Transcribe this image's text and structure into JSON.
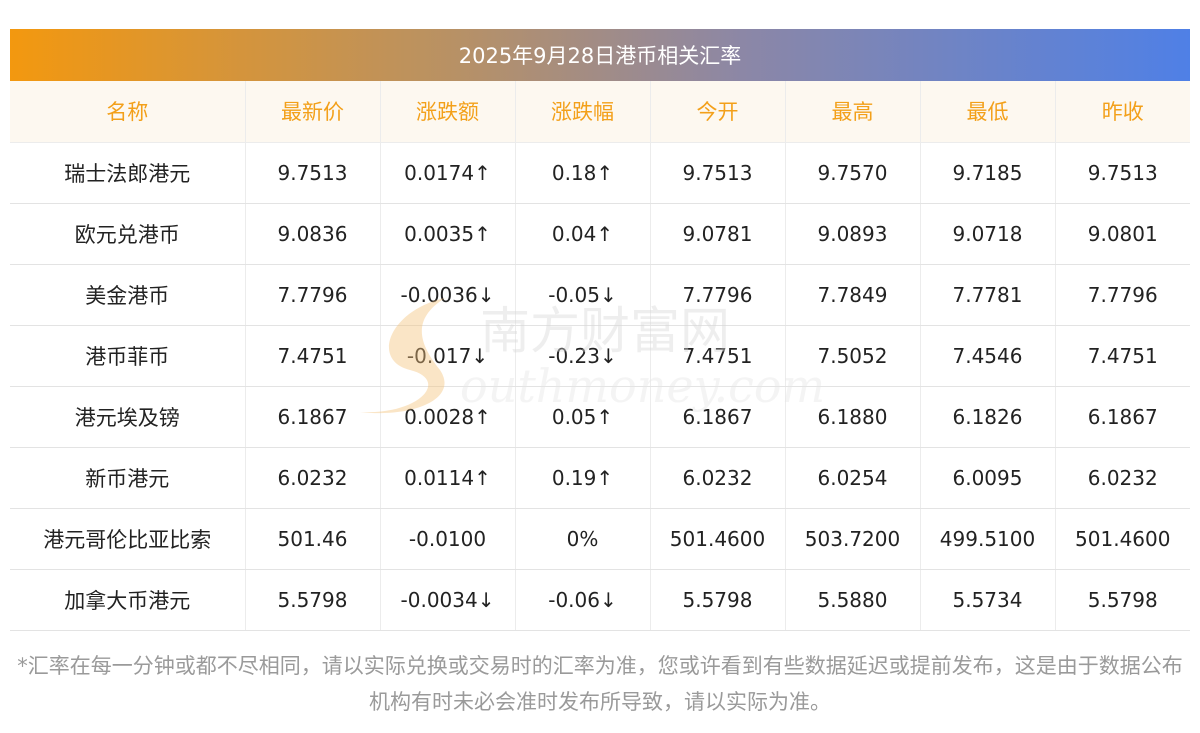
{
  "title": "2025年9月28日港币相关汇率",
  "headers": [
    "名称",
    "最新价",
    "涨跌额",
    "涨跌幅",
    "今开",
    "最高",
    "最低",
    "昨收"
  ],
  "rows": [
    {
      "name": "瑞士法郎港元",
      "latest": "9.7513",
      "change": "0.0174↑",
      "change_pct": "0.18↑",
      "open": "9.7513",
      "high": "9.7570",
      "low": "9.7185",
      "prev_close": "9.7513",
      "trend": "up"
    },
    {
      "name": "欧元兑港币",
      "latest": "9.0836",
      "change": "0.0035↑",
      "change_pct": "0.04↑",
      "open": "9.0781",
      "high": "9.0893",
      "low": "9.0718",
      "prev_close": "9.0801",
      "trend": "up"
    },
    {
      "name": "美金港币",
      "latest": "7.7796",
      "change": "-0.0036↓",
      "change_pct": "-0.05↓",
      "open": "7.7796",
      "high": "7.7849",
      "low": "7.7781",
      "prev_close": "7.7796",
      "trend": "down"
    },
    {
      "name": "港币菲币",
      "latest": "7.4751",
      "change": "-0.017↓",
      "change_pct": "-0.23↓",
      "open": "7.4751",
      "high": "7.5052",
      "low": "7.4546",
      "prev_close": "7.4751",
      "trend": "down"
    },
    {
      "name": "港元埃及镑",
      "latest": "6.1867",
      "change": "0.0028↑",
      "change_pct": "0.05↑",
      "open": "6.1867",
      "high": "6.1880",
      "low": "6.1826",
      "prev_close": "6.1867",
      "trend": "up"
    },
    {
      "name": "新币港元",
      "latest": "6.0232",
      "change": "0.0114↑",
      "change_pct": "0.19↑",
      "open": "6.0232",
      "high": "6.0254",
      "low": "6.0095",
      "prev_close": "6.0232",
      "trend": "up"
    },
    {
      "name": "港元哥伦比亚比索",
      "latest": "501.46",
      "change": "-0.0100",
      "change_pct": "0%",
      "open": "501.4600",
      "high": "503.7200",
      "low": "499.5100",
      "prev_close": "501.4600",
      "trend": "flat"
    },
    {
      "name": "加拿大币港元",
      "latest": "5.5798",
      "change": "-0.0034↓",
      "change_pct": "-0.06↓",
      "open": "5.5798",
      "high": "5.5880",
      "low": "5.5734",
      "prev_close": "5.5798",
      "trend": "down"
    }
  ],
  "watermark": {
    "cn": "南方财富网",
    "en": "outhmoney.com"
  },
  "footnote": "*汇率在每一分钟或都不尽相同，请以实际兑换或交易时的汇率为准，您或许看到有些数据延迟或提前发布，这是由于数据公布机构有时未必会准时发布所导致，请以实际为准。",
  "colors": {
    "up": "#e50012",
    "down": "#1a8a1a",
    "header_text": "#f3a01a",
    "gradient_start": "#f3980f",
    "gradient_end": "#4f80e6"
  }
}
